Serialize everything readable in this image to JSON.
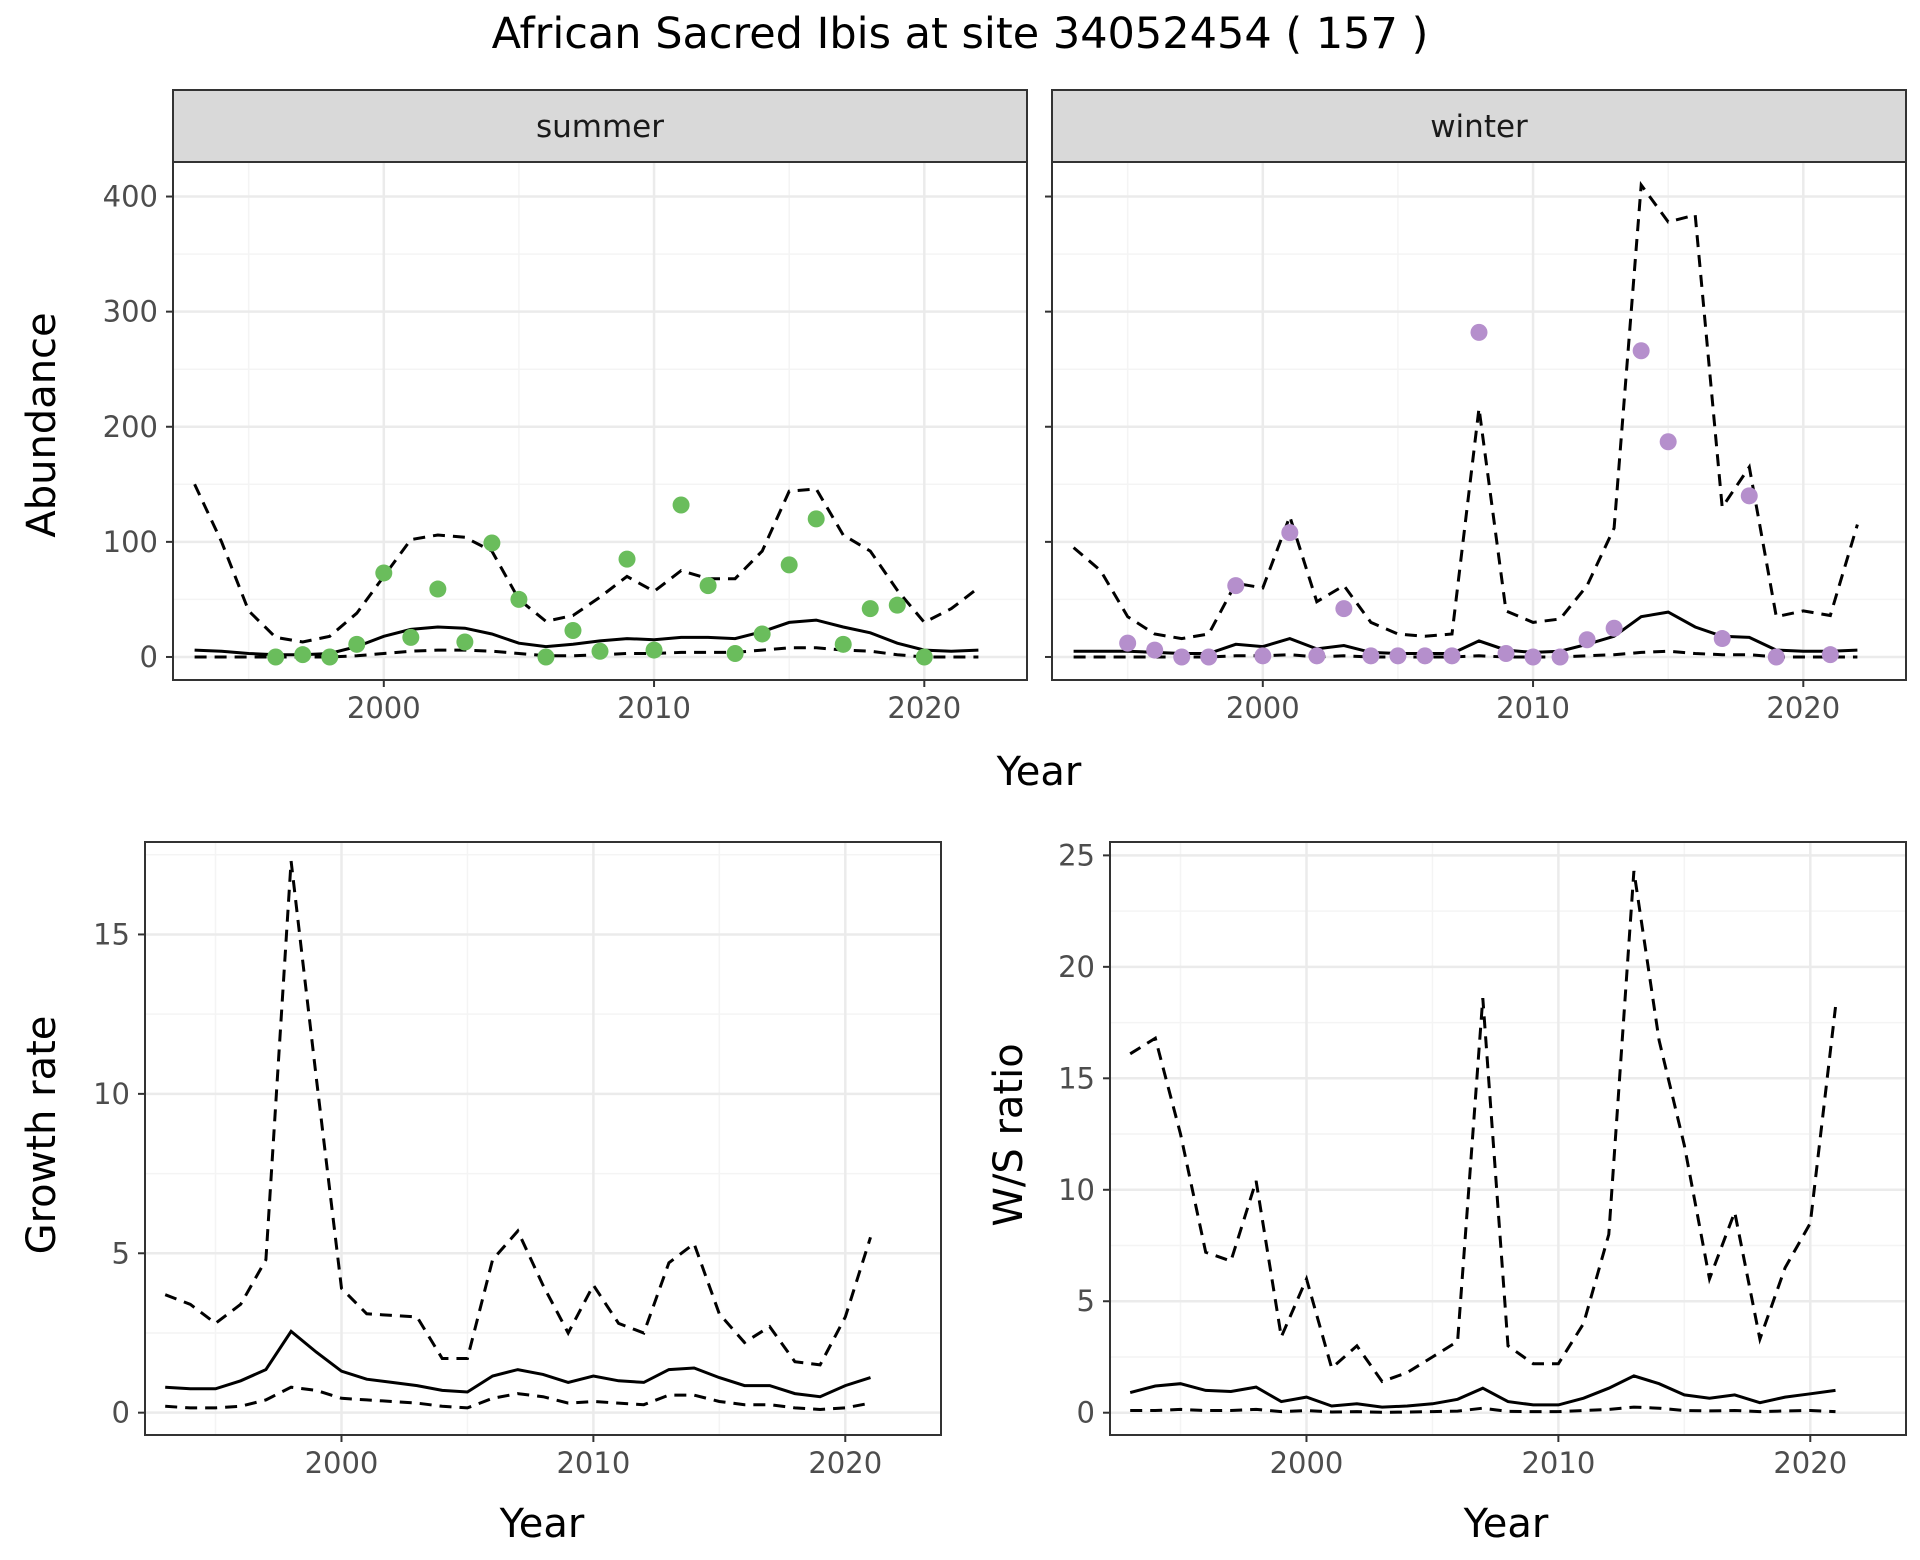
{
  "title": "African Sacred Ibis at site 34052454 ( 157 )",
  "colors": {
    "summer_points": "#6abd5c",
    "winter_points": "#b58fcc",
    "line": "#000000",
    "grid_major": "#ebebeb",
    "grid_minor": "#f4f4f4",
    "strip_fill": "#d9d9d9",
    "axis_text": "#4d4d4d"
  },
  "chart_data": [
    {
      "id": "abundance",
      "type": "line",
      "facets": [
        "summer",
        "winter"
      ],
      "xlabel": "Year",
      "ylabel": "Abundance",
      "xlim": [
        1992.2,
        2023.8
      ],
      "ylim": [
        -20,
        430
      ],
      "x_ticks": [
        2000,
        2010,
        2020
      ],
      "y_ticks": [
        0,
        100,
        200,
        300,
        400
      ],
      "grid": true,
      "panels": [
        {
          "facet": "summer",
          "years": [
            1993,
            1994,
            1995,
            1996,
            1997,
            1998,
            1999,
            2000,
            2001,
            2002,
            2003,
            2004,
            2005,
            2006,
            2007,
            2008,
            2009,
            2010,
            2011,
            2012,
            2013,
            2014,
            2015,
            2016,
            2017,
            2018,
            2019,
            2020,
            2021,
            2022
          ],
          "mean": [
            6,
            5,
            3,
            2,
            2,
            3,
            9,
            18,
            24,
            26,
            25,
            20,
            12,
            9,
            11,
            14,
            16,
            15,
            17,
            17,
            16,
            22,
            30,
            32,
            26,
            21,
            12,
            6,
            5,
            6
          ],
          "upper": [
            150,
            100,
            40,
            17,
            13,
            18,
            38,
            70,
            102,
            106,
            104,
            92,
            50,
            31,
            36,
            52,
            70,
            57,
            75,
            68,
            68,
            92,
            144,
            146,
            106,
            92,
            58,
            30,
            42,
            60
          ],
          "lower": [
            0,
            0,
            0,
            0,
            0,
            0,
            1,
            3,
            5,
            6,
            6,
            5,
            3,
            1,
            1,
            2,
            3,
            3,
            4,
            4,
            4,
            6,
            8,
            8,
            6,
            5,
            2,
            0,
            0,
            0
          ],
          "points": {
            "years": [
              1996,
              1997,
              1998,
              1999,
              2000,
              2001,
              2002,
              2003,
              2004,
              2005,
              2006,
              2007,
              2008,
              2009,
              2010,
              2011,
              2012,
              2013,
              2014,
              2015,
              2016,
              2017,
              2018,
              2019,
              2020
            ],
            "values": [
              0,
              2,
              0,
              11,
              73,
              17,
              59,
              13,
              99,
              50,
              0,
              23,
              5,
              85,
              6,
              132,
              62,
              3,
              20,
              80,
              120,
              11,
              42,
              45,
              0
            ]
          }
        },
        {
          "facet": "winter",
          "years": [
            1993,
            1994,
            1995,
            1996,
            1997,
            1998,
            1999,
            2000,
            2001,
            2002,
            2003,
            2004,
            2005,
            2006,
            2007,
            2008,
            2009,
            2010,
            2011,
            2012,
            2013,
            2014,
            2015,
            2016,
            2017,
            2018,
            2019,
            2020,
            2021,
            2022
          ],
          "mean": [
            5,
            5,
            5,
            4,
            3,
            3,
            11,
            9,
            16,
            7,
            10,
            4,
            3,
            3,
            3,
            14,
            6,
            4,
            5,
            11,
            18,
            35,
            39,
            26,
            18,
            17,
            6,
            5,
            5,
            6
          ],
          "upper": [
            95,
            75,
            35,
            20,
            16,
            20,
            64,
            60,
            122,
            48,
            62,
            30,
            20,
            18,
            20,
            216,
            40,
            30,
            33,
            62,
            112,
            410,
            378,
            384,
            130,
            165,
            35,
            40,
            36,
            115
          ],
          "lower": [
            0,
            0,
            0,
            0,
            0,
            0,
            1,
            1,
            2,
            0,
            1,
            0,
            0,
            0,
            0,
            1,
            0,
            0,
            0,
            1,
            2,
            4,
            5,
            3,
            2,
            2,
            0,
            0,
            0,
            0
          ],
          "points": {
            "years": [
              1995,
              1996,
              1997,
              1998,
              1999,
              2000,
              2001,
              2002,
              2003,
              2004,
              2005,
              2006,
              2007,
              2008,
              2009,
              2010,
              2011,
              2012,
              2013,
              2014,
              2015,
              2017,
              2018,
              2019,
              2021
            ],
            "values": [
              12,
              6,
              0,
              0,
              62,
              1,
              108,
              1,
              42,
              1,
              1,
              1,
              1,
              282,
              3,
              0,
              0,
              15,
              25,
              266,
              187,
              16,
              140,
              0,
              2
            ]
          }
        }
      ]
    },
    {
      "id": "growth",
      "type": "line",
      "xlabel": "Year",
      "ylabel": "Growth rate",
      "xlim": [
        1992.2,
        2023.8
      ],
      "ylim": [
        -0.7,
        17.9
      ],
      "x_ticks": [
        2000,
        2010,
        2020
      ],
      "y_ticks": [
        0,
        5,
        10,
        15
      ],
      "grid": true,
      "years": [
        1993,
        1994,
        1995,
        1996,
        1997,
        1998,
        1999,
        2000,
        2001,
        2002,
        2003,
        2004,
        2005,
        2006,
        2007,
        2008,
        2009,
        2010,
        2011,
        2012,
        2013,
        2014,
        2015,
        2016,
        2017,
        2018,
        2019,
        2020,
        2021
      ],
      "mean": [
        0.8,
        0.75,
        0.75,
        1.0,
        1.35,
        2.55,
        1.9,
        1.3,
        1.05,
        0.95,
        0.85,
        0.7,
        0.65,
        1.15,
        1.35,
        1.2,
        0.95,
        1.15,
        1.0,
        0.95,
        1.35,
        1.4,
        1.1,
        0.85,
        0.85,
        0.6,
        0.5,
        0.85,
        1.1
      ],
      "upper": [
        3.7,
        3.4,
        2.8,
        3.4,
        4.8,
        17.3,
        10.5,
        3.9,
        3.1,
        3.05,
        3.0,
        1.7,
        1.7,
        4.8,
        5.7,
        4.0,
        2.5,
        4.0,
        2.8,
        2.5,
        4.7,
        5.3,
        3.1,
        2.2,
        2.7,
        1.6,
        1.5,
        3.0,
        5.5
      ],
      "lower": [
        0.2,
        0.15,
        0.15,
        0.2,
        0.4,
        0.8,
        0.7,
        0.45,
        0.4,
        0.35,
        0.3,
        0.2,
        0.15,
        0.45,
        0.6,
        0.5,
        0.3,
        0.35,
        0.3,
        0.25,
        0.55,
        0.55,
        0.35,
        0.25,
        0.25,
        0.15,
        0.1,
        0.15,
        0.3
      ]
    },
    {
      "id": "ws_ratio",
      "type": "line",
      "xlabel": "Year",
      "ylabel": "W/S ratio",
      "xlim": [
        1992.2,
        2023.8
      ],
      "ylim": [
        -1.0,
        25.6
      ],
      "x_ticks": [
        2000,
        2010,
        2020
      ],
      "y_ticks": [
        0,
        5,
        10,
        15,
        20,
        25
      ],
      "grid": true,
      "years": [
        1993,
        1994,
        1995,
        1996,
        1997,
        1998,
        1999,
        2000,
        2001,
        2002,
        2003,
        2004,
        2005,
        2006,
        2007,
        2008,
        2009,
        2010,
        2011,
        2012,
        2013,
        2014,
        2015,
        2016,
        2017,
        2018,
        2019,
        2020,
        2021
      ],
      "mean": [
        0.9,
        1.2,
        1.3,
        1.0,
        0.95,
        1.15,
        0.5,
        0.7,
        0.3,
        0.4,
        0.25,
        0.3,
        0.4,
        0.6,
        1.1,
        0.5,
        0.35,
        0.35,
        0.65,
        1.1,
        1.65,
        1.3,
        0.8,
        0.65,
        0.8,
        0.45,
        0.7,
        0.85,
        1.0
      ],
      "upper": [
        16.1,
        16.8,
        12.5,
        7.2,
        6.8,
        10.4,
        3.4,
        6.0,
        2.0,
        3.0,
        1.4,
        1.8,
        2.5,
        3.2,
        18.6,
        3.0,
        2.2,
        2.2,
        4.0,
        8.0,
        24.3,
        16.7,
        12.0,
        6.0,
        9.0,
        3.3,
        6.5,
        8.5,
        18.2
      ],
      "lower": [
        0.1,
        0.1,
        0.15,
        0.1,
        0.1,
        0.15,
        0.05,
        0.1,
        0.03,
        0.05,
        0.02,
        0.03,
        0.05,
        0.07,
        0.2,
        0.06,
        0.05,
        0.05,
        0.1,
        0.15,
        0.25,
        0.2,
        0.1,
        0.08,
        0.1,
        0.05,
        0.08,
        0.1,
        0.05
      ]
    }
  ]
}
